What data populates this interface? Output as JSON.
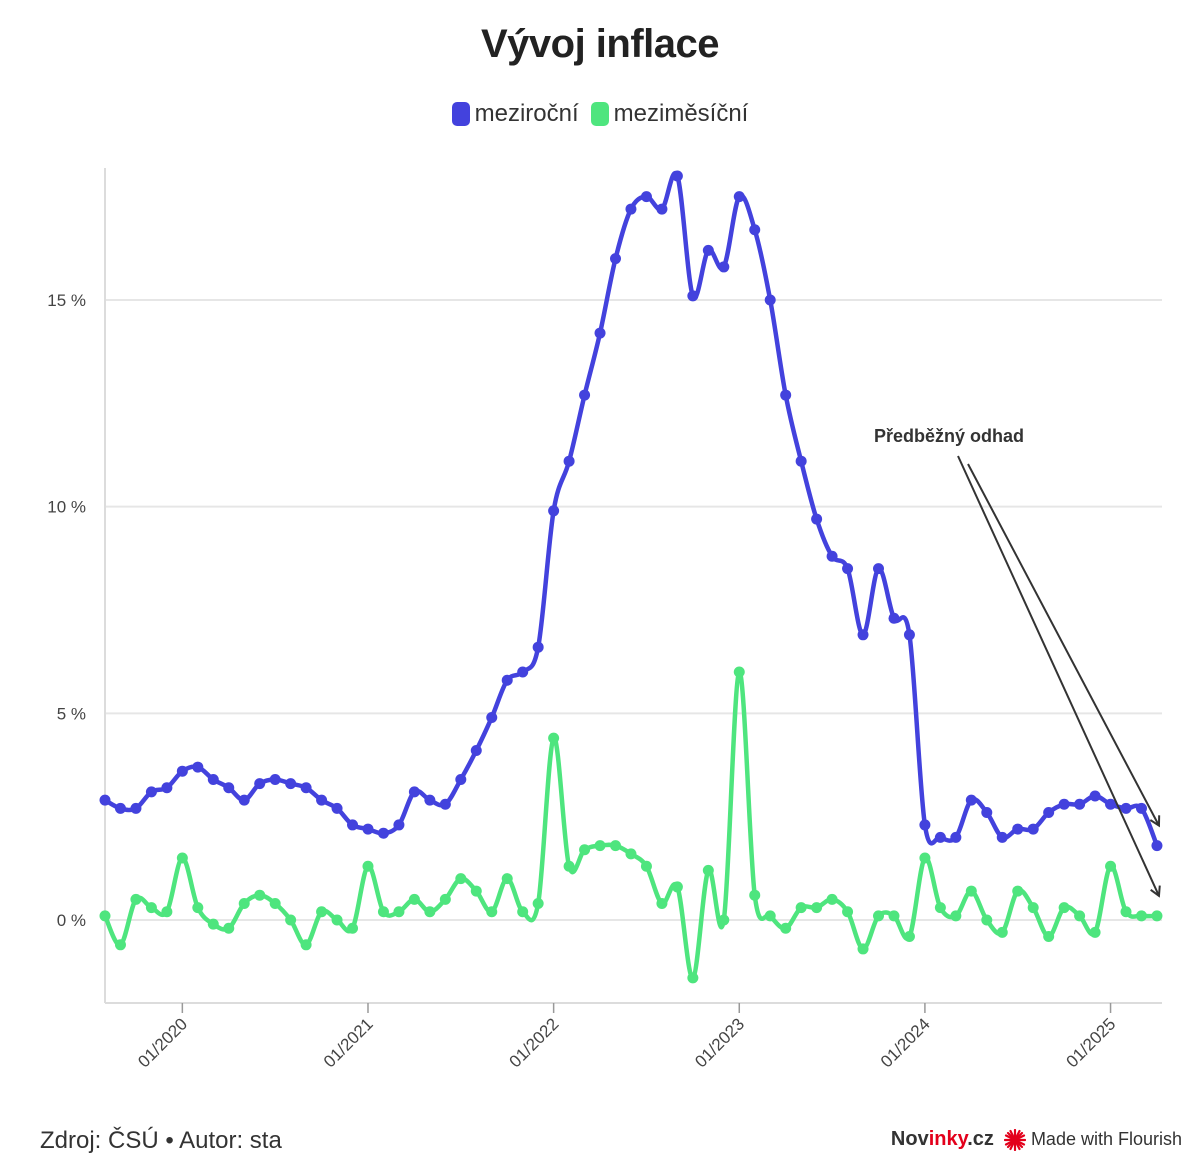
{
  "chart_data": {
    "type": "line",
    "title": "Vývoj inflace",
    "xlabel": "",
    "ylabel": "",
    "ylim": [
      -2.2,
      18.2
    ],
    "x_ticks": [
      "01/2020",
      "01/2021",
      "01/2022",
      "01/2023",
      "01/2024",
      "01/2025"
    ],
    "y_ticks": [
      {
        "value": 0,
        "label": "0 %"
      },
      {
        "value": 5,
        "label": "5 %"
      },
      {
        "value": 10,
        "label": "10 %"
      },
      {
        "value": 15,
        "label": "15 %"
      }
    ],
    "start_month": "2019-08",
    "series": [
      {
        "name": "meziroční",
        "color": "#4342dd",
        "values": [
          2.9,
          2.7,
          2.7,
          3.1,
          3.2,
          3.6,
          3.7,
          3.4,
          3.2,
          2.9,
          3.3,
          3.4,
          3.3,
          3.2,
          2.9,
          2.7,
          2.3,
          2.2,
          2.1,
          2.3,
          3.1,
          2.9,
          2.8,
          3.4,
          4.1,
          4.9,
          5.8,
          6.0,
          6.6,
          9.9,
          11.1,
          12.7,
          14.2,
          16.0,
          17.2,
          17.5,
          17.2,
          18.0,
          15.1,
          16.2,
          15.8,
          17.5,
          16.7,
          15.0,
          12.7,
          11.1,
          9.7,
          8.8,
          8.5,
          6.9,
          8.5,
          7.3,
          6.9,
          2.3,
          2.0,
          2.0,
          2.9,
          2.6,
          2.0,
          2.2,
          2.2,
          2.6,
          2.8,
          2.8,
          3.0,
          2.8,
          2.7,
          2.7,
          1.8
        ]
      },
      {
        "name": "meziměsíční",
        "color": "#4ee57e",
        "values": [
          0.1,
          -0.6,
          0.5,
          0.3,
          0.2,
          1.5,
          0.3,
          -0.1,
          -0.2,
          0.4,
          0.6,
          0.4,
          0.0,
          -0.6,
          0.2,
          0.0,
          -0.2,
          1.3,
          0.2,
          0.2,
          0.5,
          0.2,
          0.5,
          1.0,
          0.7,
          0.2,
          1.0,
          0.2,
          0.4,
          4.4,
          1.3,
          1.7,
          1.8,
          1.8,
          1.6,
          1.3,
          0.4,
          0.8,
          -1.4,
          1.2,
          0.0,
          6.0,
          0.6,
          0.1,
          -0.2,
          0.3,
          0.3,
          0.5,
          0.2,
          -0.7,
          0.1,
          0.1,
          -0.4,
          1.5,
          0.3,
          0.1,
          0.7,
          0.0,
          -0.3,
          0.7,
          0.3,
          -0.4,
          0.3,
          0.1,
          -0.3,
          1.3,
          0.2,
          0.1,
          0.1
        ]
      }
    ],
    "annotation": {
      "text": "Předběžný odhad",
      "targets": [
        "meziroční",
        "meziměsíční"
      ]
    }
  },
  "footer": {
    "source": "Zdroj: ČSÚ • Autor: sta",
    "brand_part1": "Nov",
    "brand_part2": "inky",
    "brand_part3": ".cz",
    "made_with": "Made with Flourish"
  }
}
